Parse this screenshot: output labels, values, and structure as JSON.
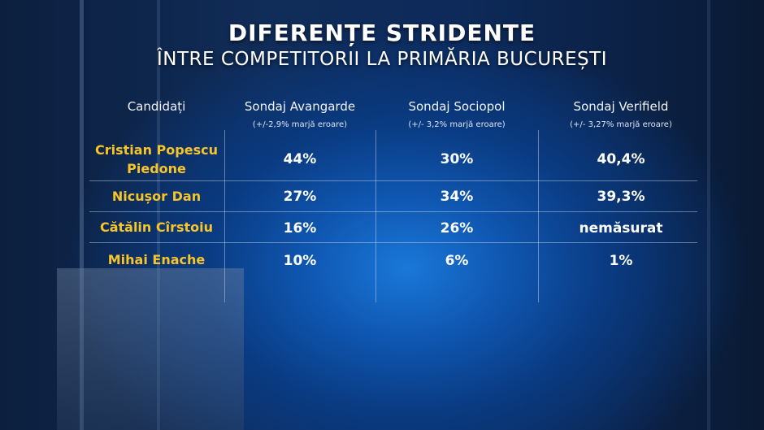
{
  "title": "DIFERENȚE STRIDENTE",
  "subtitle": "ÎNTRE COMPETITORII LA PRIMĂRIA BUCUREȘTI",
  "chart_data": {
    "type": "table",
    "columns": [
      {
        "label": "Candidați",
        "note": ""
      },
      {
        "label": "Sondaj Avangarde",
        "note": "(+/-2,9% marjă eroare)"
      },
      {
        "label": "Sondaj Sociopol",
        "note": "(+/- 3,2% marjă eroare)"
      },
      {
        "label": "Sondaj Verifield",
        "note": "(+/- 3,27% marjă eroare)"
      }
    ],
    "rows": [
      {
        "name_line1": "Cristian Popescu",
        "name_line2": "Piedone",
        "values": [
          "44%",
          "30%",
          "40,4%"
        ]
      },
      {
        "name_line1": "Nicușor Dan",
        "name_line2": "",
        "values": [
          "27%",
          "34%",
          "39,3%"
        ]
      },
      {
        "name_line1": "Cătălin Cîrstoiu",
        "name_line2": "",
        "values": [
          "16%",
          "26%",
          "nemăsurat"
        ]
      },
      {
        "name_line1": "Mihai Enache",
        "name_line2": "",
        "values": [
          "10%",
          "6%",
          "1%"
        ]
      }
    ]
  },
  "colors": {
    "candidate_name": "#f7c52a",
    "text": "#ffffff",
    "accent_blue": "#1a78d8"
  }
}
